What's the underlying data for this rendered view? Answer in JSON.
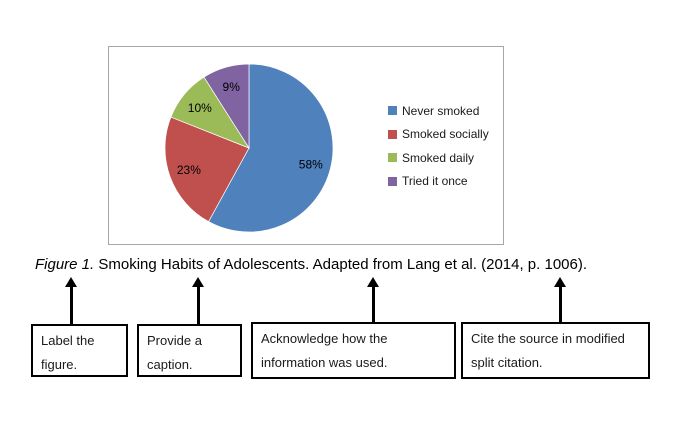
{
  "chart_data": {
    "type": "pie",
    "categories": [
      "Never smoked",
      "Smoked socially",
      "Smoked daily",
      "Tried it once"
    ],
    "values": [
      58,
      23,
      10,
      9
    ],
    "labels": [
      "58%",
      "23%",
      "10%",
      "9%"
    ],
    "colors": [
      "#4f81bd",
      "#c0504d",
      "#9bbb59",
      "#8064a2"
    ],
    "title": "",
    "legend_position": "right",
    "start_angle": "top",
    "direction": "clockwise"
  },
  "caption": {
    "figure_label": "Figure 1.",
    "text": "Smoking Habits of Adolescents. Adapted from Lang et al. (2014, p. 1006)."
  },
  "annotations": [
    {
      "text": "Label the figure."
    },
    {
      "text": "Provide a caption."
    },
    {
      "text": "Acknowledge how the information was used."
    },
    {
      "text": "Cite the source in modified split citation."
    }
  ]
}
